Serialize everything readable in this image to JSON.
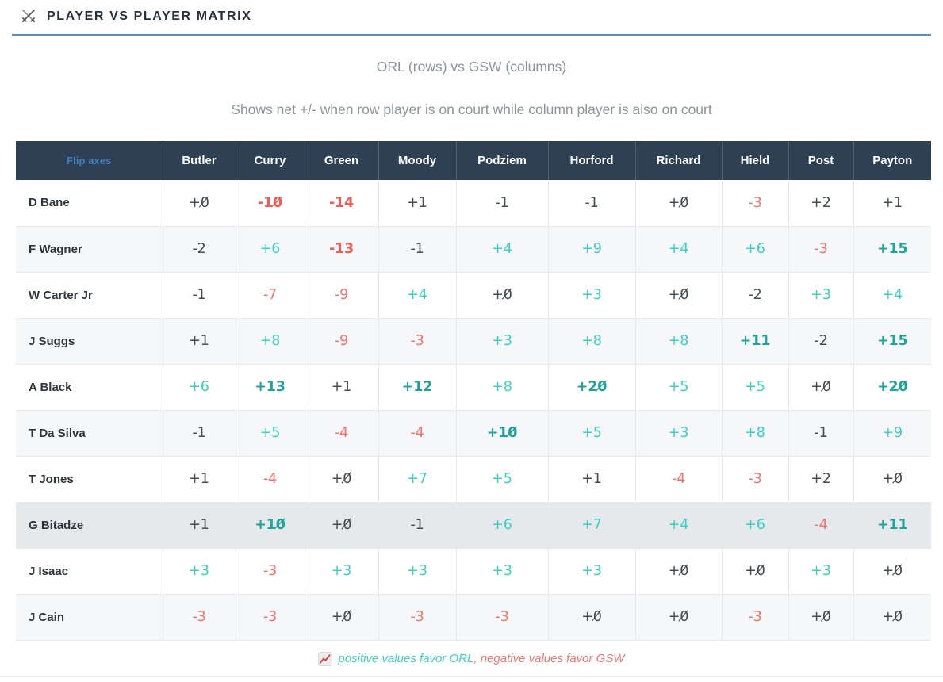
{
  "header": {
    "title": "PLAYER VS PLAYER MATRIX",
    "icon": "crossed-swords-icon"
  },
  "subtitle": "ORL (rows) vs GSW (columns)",
  "description": "Shows net +/- when row player is on court while column player is also on court",
  "matrix": {
    "flip_axes_label": "Flip axes",
    "row_team": "ORL",
    "column_team": "GSW",
    "columns": [
      "Butler",
      "Curry",
      "Green",
      "Moody",
      "Podziem",
      "Horford",
      "Richard",
      "Hield",
      "Post",
      "Payton"
    ],
    "rows": [
      {
        "name": "D Bane",
        "highlight": false,
        "values": [
          "+0̸",
          "-10̸",
          "-14",
          "+1",
          "-1",
          "-1",
          "+0̸",
          "-3",
          "+2",
          "+1"
        ]
      },
      {
        "name": "F Wagner",
        "highlight": false,
        "values": [
          "-2",
          "+6",
          "-13",
          "-1",
          "+4",
          "+9",
          "+4",
          "+6",
          "-3",
          "+15"
        ]
      },
      {
        "name": "W Carter Jr",
        "highlight": false,
        "values": [
          "-1",
          "-7",
          "-9",
          "+4",
          "+0̸",
          "+3",
          "+0̸",
          "-2",
          "+3",
          "+4"
        ]
      },
      {
        "name": "J Suggs",
        "highlight": false,
        "values": [
          "+1",
          "+8",
          "-9",
          "-3",
          "+3",
          "+8",
          "+8",
          "+11",
          "-2",
          "+15"
        ]
      },
      {
        "name": "A Black",
        "highlight": false,
        "values": [
          "+6",
          "+13",
          "+1",
          "+12",
          "+8",
          "+20̸",
          "+5",
          "+5",
          "+0̸",
          "+20̸"
        ]
      },
      {
        "name": "T Da Silva",
        "highlight": false,
        "values": [
          "-1",
          "+5",
          "-4",
          "-4",
          "+10̸",
          "+5",
          "+3",
          "+8",
          "-1",
          "+9"
        ]
      },
      {
        "name": "T Jones",
        "highlight": false,
        "values": [
          "+1",
          "-4",
          "+0̸",
          "+7",
          "+5",
          "+1",
          "-4",
          "-3",
          "+2",
          "+0̸"
        ]
      },
      {
        "name": "G Bitadze",
        "highlight": true,
        "values": [
          "+1",
          "+10̸",
          "+0̸",
          "-1",
          "+6",
          "+7",
          "+4",
          "+6",
          "-4",
          "+11"
        ]
      },
      {
        "name": "J Isaac",
        "highlight": false,
        "values": [
          "+3",
          "-3",
          "+3",
          "+3",
          "+3",
          "+3",
          "+0̸",
          "+0̸",
          "+3",
          "+0̸"
        ]
      },
      {
        "name": "J Cain",
        "highlight": false,
        "values": [
          "-3",
          "-3",
          "+0̸",
          "-3",
          "-3",
          "+0̸",
          "+0̸",
          "-3",
          "+0̸",
          "+0̸"
        ]
      }
    ]
  },
  "footnote": {
    "icon": "chart-increasing-icon",
    "positive": "positive values favor ORL",
    "negative": ", negative values favor GSW"
  },
  "colors": {
    "header_bg": "#2e4053",
    "accent_blue": "#4b90d4",
    "flip_axes_blue": "#3e80c2",
    "positive": "#3ad0c4",
    "positive_strong": "#1da49b",
    "negative": "#f4736e",
    "negative_strong": "#f25b57",
    "neutral": "#464c51",
    "highlight_row": "#e6e9ec",
    "stripe_row": "#f6f7f9"
  }
}
